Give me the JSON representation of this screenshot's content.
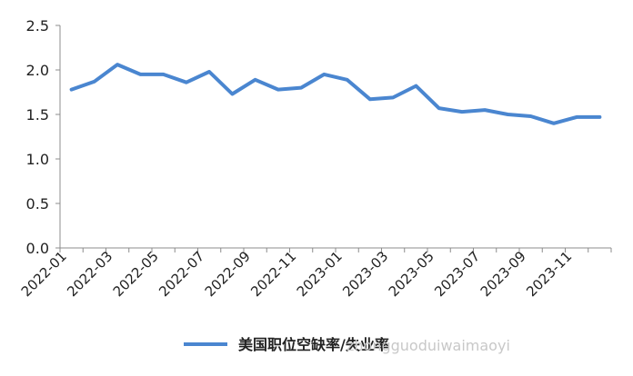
{
  "chart_data": {
    "type": "line",
    "x": [
      "2022-01",
      "2022-02",
      "2022-03",
      "2022-04",
      "2022-05",
      "2022-06",
      "2022-07",
      "2022-08",
      "2022-09",
      "2022-10",
      "2022-11",
      "2022-12",
      "2023-01",
      "2023-02",
      "2023-03",
      "2023-04",
      "2023-05",
      "2023-06",
      "2023-07",
      "2023-08",
      "2023-09",
      "2023-10",
      "2023-11",
      "2023-12"
    ],
    "x_tick_labels": [
      "2022-01",
      "2022-03",
      "2022-05",
      "2022-07",
      "2022-09",
      "2022-11",
      "2023-01",
      "2023-03",
      "2023-05",
      "2023-07",
      "2023-09",
      "2023-11"
    ],
    "y_tick_labels": [
      "0.0",
      "0.5",
      "1.0",
      "1.5",
      "2.0",
      "2.5"
    ],
    "ylim": [
      0,
      2.5
    ],
    "series": [
      {
        "name": "美国职位空缺率/失业率",
        "values": [
          1.78,
          1.87,
          2.06,
          1.95,
          1.95,
          1.86,
          1.98,
          1.73,
          1.89,
          1.78,
          1.8,
          1.95,
          1.89,
          1.67,
          1.69,
          1.82,
          1.57,
          1.53,
          1.55,
          1.5,
          1.48,
          1.4,
          1.47,
          1.47
        ],
        "color": "#4a86d0"
      }
    ],
    "legend": "bottom",
    "grid": false
  },
  "watermark": "zhongguoduiwaimaoyi"
}
